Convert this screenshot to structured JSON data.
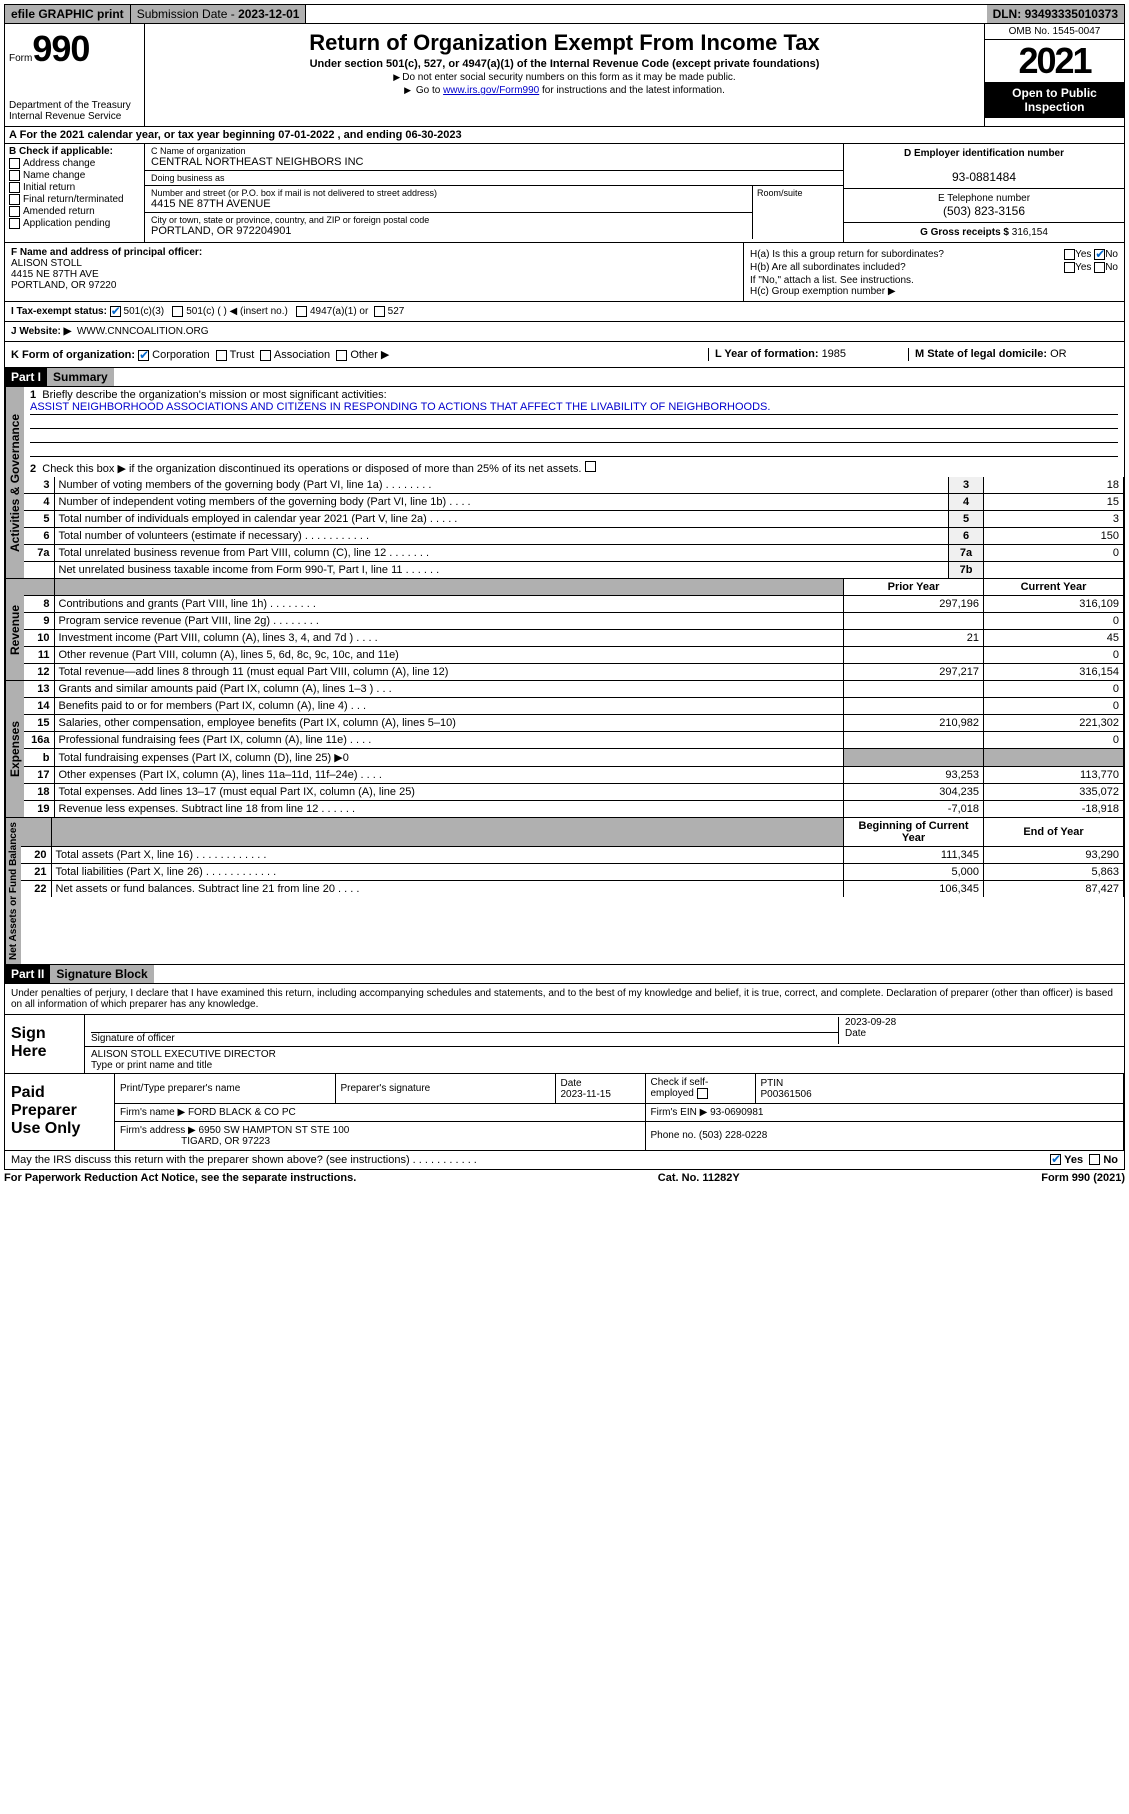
{
  "topbar": {
    "efile": "efile GRAPHIC print",
    "subdate_label": "Submission Date - ",
    "subdate": "2023-12-01",
    "dln_label": "DLN: ",
    "dln": "93493335010373"
  },
  "header": {
    "form_prefix": "Form",
    "form_number": "990",
    "dept": "Department of the Treasury",
    "irs": "Internal Revenue Service",
    "title": "Return of Organization Exempt From Income Tax",
    "subtitle": "Under section 501(c), 527, or 4947(a)(1) of the Internal Revenue Code (except private foundations)",
    "note1": "Do not enter social security numbers on this form as it may be made public.",
    "note2_pre": "Go to ",
    "note2_link": "www.irs.gov/Form990",
    "note2_post": " for instructions and the latest information.",
    "omb": "OMB No. 1545-0047",
    "year": "2021",
    "otp": "Open to Public Inspection"
  },
  "row_a": {
    "text": "For the 2021 calendar year, or tax year beginning 07-01-2022   , and ending 06-30-2023"
  },
  "block_b": {
    "title": "B Check if applicable:",
    "items": [
      "Address change",
      "Name change",
      "Initial return",
      "Final return/terminated",
      "Amended return",
      "Application pending"
    ]
  },
  "block_c": {
    "name_label": "C Name of organization",
    "name": "CENTRAL NORTHEAST NEIGHBORS INC",
    "dba_label": "Doing business as",
    "dba": "",
    "street_label": "Number and street (or P.O. box if mail is not delivered to street address)",
    "street": "4415 NE 87TH AVENUE",
    "room_label": "Room/suite",
    "room": "",
    "city_label": "City or town, state or province, country, and ZIP or foreign postal code",
    "city": "PORTLAND, OR  972204901"
  },
  "block_d": {
    "label": "D Employer identification number",
    "value": "93-0881484"
  },
  "block_e": {
    "label": "E Telephone number",
    "value": "(503) 823-3156"
  },
  "block_g": {
    "label": "G Gross receipts $ ",
    "value": "316,154"
  },
  "block_f": {
    "label": "F Name and address of principal officer:",
    "name": "ALISON STOLL",
    "street": "4415 NE 87TH AVE",
    "city": "PORTLAND, OR  97220"
  },
  "block_h": {
    "ha_label": "H(a)  Is this a group return for subordinates?",
    "ha_yes": "Yes",
    "ha_no": "No",
    "hb_label": "H(b)  Are all subordinates included?",
    "hb_yes": "Yes",
    "hb_no": "No",
    "hb_note": "If \"No,\" attach a list. See instructions.",
    "hc_label": "H(c)  Group exemption number ▶"
  },
  "row_i": {
    "label": "I   Tax-exempt status:",
    "opt1": "501(c)(3)",
    "opt2": "501(c) (   ) ◀ (insert no.)",
    "opt3": "4947(a)(1) or",
    "opt4": "527"
  },
  "row_j": {
    "label": "J   Website: ▶ ",
    "value": "WWW.CNNCOALITION.ORG"
  },
  "row_k": {
    "label": "K Form of organization:",
    "opts": [
      "Corporation",
      "Trust",
      "Association",
      "Other ▶"
    ]
  },
  "row_l": {
    "label": "L Year of formation: ",
    "value": "1985"
  },
  "row_m": {
    "label": "M State of legal domicile: ",
    "value": "OR"
  },
  "part1": {
    "hdr": "Part I",
    "title": "Summary",
    "line1_label": "Briefly describe the organization's mission or most significant activities:",
    "mission": "ASSIST NEIGHBORHOOD ASSOCIATIONS AND CITIZENS IN RESPONDING TO ACTIONS THAT AFFECT THE LIVABILITY OF NEIGHBORHOODS.",
    "line2": "Check this box ▶        if the organization discontinued its operations or disposed of more than 25% of its net assets.",
    "vtab_ag": "Activities & Governance",
    "vtab_rev": "Revenue",
    "vtab_exp": "Expenses",
    "vtab_na": "Net Assets or Fund Balances",
    "rows_ag": [
      {
        "n": "3",
        "d": "Number of voting members of the governing body (Part VI, line 1a)   .    .    .    .    .    .    .    .",
        "r": "3",
        "v": "18"
      },
      {
        "n": "4",
        "d": "Number of independent voting members of the governing body (Part VI, line 1b)   .    .    .    .",
        "r": "4",
        "v": "15"
      },
      {
        "n": "5",
        "d": "Total number of individuals employed in calendar year 2021 (Part V, line 2a)   .    .    .    .    .",
        "r": "5",
        "v": "3"
      },
      {
        "n": "6",
        "d": "Total number of volunteers (estimate if necessary)   .    .    .    .    .    .    .    .    .    .    .",
        "r": "6",
        "v": "150"
      },
      {
        "n": "7a",
        "d": "Total unrelated business revenue from Part VIII, column (C), line 12   .    .    .    .    .    .    .",
        "r": "7a",
        "v": "0"
      },
      {
        "n": "",
        "d": "Net unrelated business taxable income from Form 990-T, Part I, line 11   .    .    .    .    .    .",
        "r": "7b",
        "v": ""
      }
    ],
    "hdr_prior": "Prior Year",
    "hdr_current": "Current Year",
    "rows_rev": [
      {
        "n": "8",
        "d": "Contributions and grants (Part VIII, line 1h)   .    .    .    .    .    .    .    .",
        "p": "297,196",
        "c": "316,109"
      },
      {
        "n": "9",
        "d": "Program service revenue (Part VIII, line 2g)   .    .    .    .    .    .    .    .",
        "p": "",
        "c": "0"
      },
      {
        "n": "10",
        "d": "Investment income (Part VIII, column (A), lines 3, 4, and 7d )   .    .    .    .",
        "p": "21",
        "c": "45"
      },
      {
        "n": "11",
        "d": "Other revenue (Part VIII, column (A), lines 5, 6d, 8c, 9c, 10c, and 11e)",
        "p": "",
        "c": "0"
      },
      {
        "n": "12",
        "d": "Total revenue—add lines 8 through 11 (must equal Part VIII, column (A), line 12)",
        "p": "297,217",
        "c": "316,154"
      }
    ],
    "rows_exp": [
      {
        "n": "13",
        "d": "Grants and similar amounts paid (Part IX, column (A), lines 1–3 )   .    .    .",
        "p": "",
        "c": "0"
      },
      {
        "n": "14",
        "d": "Benefits paid to or for members (Part IX, column (A), line 4)   .    .    .",
        "p": "",
        "c": "0"
      },
      {
        "n": "15",
        "d": "Salaries, other compensation, employee benefits (Part IX, column (A), lines 5–10)",
        "p": "210,982",
        "c": "221,302"
      },
      {
        "n": "16a",
        "d": "Professional fundraising fees (Part IX, column (A), line 11e)   .    .    .    .",
        "p": "",
        "c": "0"
      },
      {
        "n": "b",
        "d": "Total fundraising expenses (Part IX, column (D), line 25) ▶0",
        "p": "__grey__",
        "c": "__grey__"
      },
      {
        "n": "17",
        "d": "Other expenses (Part IX, column (A), lines 11a–11d, 11f–24e)   .    .    .    .",
        "p": "93,253",
        "c": "113,770"
      },
      {
        "n": "18",
        "d": "Total expenses. Add lines 13–17 (must equal Part IX, column (A), line 25)",
        "p": "304,235",
        "c": "335,072"
      },
      {
        "n": "19",
        "d": "Revenue less expenses. Subtract line 18 from line 12   .    .    .    .    .    .",
        "p": "-7,018",
        "c": "-18,918"
      }
    ],
    "hdr_begin": "Beginning of Current Year",
    "hdr_end": "End of Year",
    "rows_na": [
      {
        "n": "20",
        "d": "Total assets (Part X, line 16)   .    .    .    .    .    .    .    .    .    .    .    .",
        "p": "111,345",
        "c": "93,290"
      },
      {
        "n": "21",
        "d": "Total liabilities (Part X, line 26)   .    .    .    .    .    .    .    .    .    .    .    .",
        "p": "5,000",
        "c": "5,863"
      },
      {
        "n": "22",
        "d": "Net assets or fund balances. Subtract line 21 from line 20   .    .    .    .",
        "p": "106,345",
        "c": "87,427"
      }
    ]
  },
  "part2": {
    "hdr": "Part II",
    "title": "Signature Block",
    "decl": "Under penalties of perjury, I declare that I have examined this return, including accompanying schedules and statements, and to the best of my knowledge and belief, it is true, correct, and complete. Declaration of preparer (other than officer) is based on all information of which preparer has any knowledge."
  },
  "sign": {
    "lbl": "Sign Here",
    "sig_label": "Signature of officer",
    "date_label": "Date",
    "date": "2023-09-28",
    "name": "ALISON STOLL EXECUTIVE DIRECTOR",
    "name_label": "Type or print name and title"
  },
  "preparer": {
    "lbl": "Paid Preparer Use Only",
    "h1": "Print/Type preparer's name",
    "h2": "Preparer's signature",
    "h3_label": "Date",
    "h3": "2023-11-15",
    "h4_label": "Check         if self-employed",
    "h5_label": "PTIN",
    "h5": "P00361506",
    "firm_name_label": "Firm's name      ▶ ",
    "firm_name": "FORD BLACK & CO PC",
    "firm_ein_label": "Firm's EIN ▶ ",
    "firm_ein": "93-0690981",
    "firm_addr_label": "Firm's address ▶ ",
    "firm_addr1": "6950 SW HAMPTON ST STE 100",
    "firm_addr2": "TIGARD, OR  97223",
    "phone_label": "Phone no. ",
    "phone": "(503) 228-0228"
  },
  "footer": {
    "discuss": "May the IRS discuss this return with the preparer shown above? (see instructions)   .    .    .    .    .    .    .    .    .    .    .",
    "yes": "Yes",
    "no": "No",
    "paperwork": "For Paperwork Reduction Act Notice, see the separate instructions.",
    "cat": "Cat. No. 11282Y",
    "form": "Form 990 (2021)"
  }
}
